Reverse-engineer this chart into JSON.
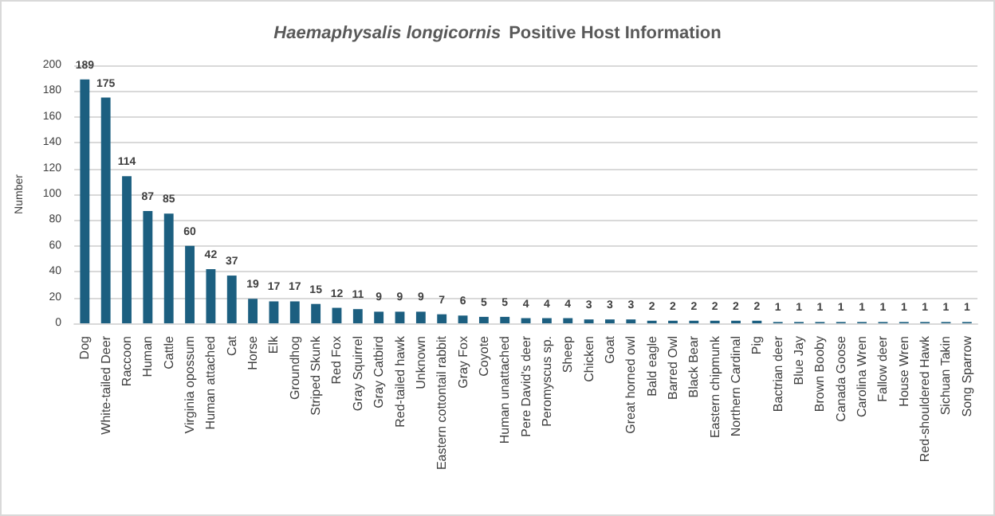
{
  "chart_data": {
    "type": "bar",
    "title": "Haemaphysalis longicornis Positive Host Information",
    "ylabel": "Number",
    "categories": [
      "Dog",
      "White-tailed Deer",
      "Raccoon",
      "Human",
      "Cattle",
      "Virginia opossum",
      "Human attached",
      "Cat",
      "Horse",
      "Elk",
      "Groundhog",
      "Striped Skunk",
      "Red Fox",
      "Gray Squirrel",
      "Gray Catbird",
      "Red-tailed hawk",
      "Unknown",
      "Eastern cottontail rabbit",
      "Gray Fox",
      "Coyote",
      "Human unattached",
      "Pere David's deer",
      "Peromyscus sp.",
      "Sheep",
      "Chicken",
      "Goat",
      "Great horned owl",
      "Bald eagle",
      "Barred Owl",
      "Black Bear",
      "Eastern chipmunk",
      "Northern Cardinal",
      "Pig",
      "Bactrian deer",
      "Blue Jay",
      "Brown Booby",
      "Canada Goose",
      "Carolina Wren",
      "Fallow deer",
      "House Wren",
      "Red-shouldered Hawk",
      "Sichuan Takin",
      "Song Sparrow"
    ],
    "values": [
      189,
      175,
      114,
      87,
      85,
      60,
      42,
      37,
      19,
      17,
      17,
      15,
      12,
      11,
      9,
      9,
      9,
      7,
      6,
      5,
      5,
      4,
      4,
      4,
      3,
      3,
      3,
      2,
      2,
      2,
      2,
      2,
      2,
      1,
      1,
      1,
      1,
      1,
      1,
      1,
      1,
      1,
      1
    ],
    "color": "#1c5f80",
    "ylim": [
      0,
      200
    ],
    "yticks": [
      0,
      20,
      40,
      60,
      80,
      100,
      120,
      140,
      160,
      180,
      200
    ],
    "grid": "y",
    "data_labels": true
  }
}
